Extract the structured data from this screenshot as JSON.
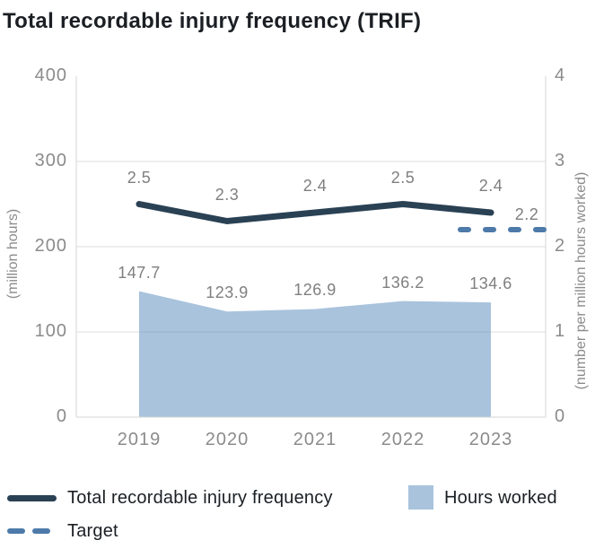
{
  "title": "Total recordable injury frequency (TRIF)",
  "chart_data": {
    "type": "line",
    "categories": [
      "2019",
      "2020",
      "2021",
      "2022",
      "2023"
    ],
    "series": [
      {
        "name": "Total recordable injury frequency",
        "type": "line",
        "axis": "right",
        "color": "#2a4154",
        "values": [
          2.5,
          2.3,
          2.4,
          2.5,
          2.4
        ],
        "labels": [
          "2.5",
          "2.3",
          "2.4",
          "2.5",
          "2.4"
        ]
      },
      {
        "name": "Hours worked",
        "type": "area",
        "axis": "left",
        "color": "#a9c3dd",
        "values": [
          147.7,
          123.9,
          126.9,
          136.2,
          134.6
        ],
        "labels": [
          "147.7",
          "123.9",
          "126.9",
          "136.2",
          "134.6"
        ]
      },
      {
        "name": "Target",
        "type": "dashed-line",
        "axis": "right",
        "color": "#4d7aa9",
        "value": 2.2,
        "label": "2.2",
        "span_categories": [
          "2023"
        ]
      }
    ],
    "left_axis": {
      "title": "(million hours)",
      "range": [
        0,
        400
      ],
      "tick_values": [
        400,
        300,
        200,
        100,
        0
      ],
      "ticks": [
        "400",
        "300",
        "200",
        "100",
        "0"
      ]
    },
    "right_axis": {
      "title": "(number per million hours worked)",
      "range": [
        0,
        4
      ],
      "tick_values": [
        4,
        3,
        2,
        1,
        0
      ],
      "ticks": [
        "4",
        "3",
        "2",
        "1",
        "0"
      ]
    },
    "grid": true,
    "legend_position": "bottom"
  },
  "legend": {
    "items": [
      {
        "label": "Total recordable injury frequency",
        "swatch": "line",
        "color": "#2a4154"
      },
      {
        "label": "Hours worked",
        "swatch": "rect",
        "color": "#a9c3dd"
      },
      {
        "label": "Target",
        "swatch": "dashed",
        "color": "#4d7aa9"
      }
    ]
  },
  "colors": {
    "trif_line": "#2a4154",
    "hours_area": "#a9c3dd",
    "target_dash": "#4d7aa9",
    "axis_text": "#8b8b8b",
    "data_label_text": "#7f7f7f",
    "grid_line": "#dcdcdc",
    "axis_line": "#d4d4d4",
    "title_text": "#1b1f24"
  }
}
